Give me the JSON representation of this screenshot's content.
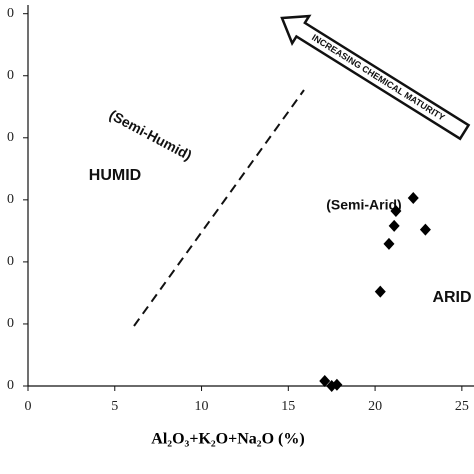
{
  "chart_data": {
    "type": "scatter",
    "x_label": "Al₂O₃+K₂O+Na₂O (%)",
    "annotations": [
      "HUMID",
      "(Semi-Humid)",
      "(Semi-Arid)",
      "ARID",
      "INCREASING CHEMICAL MATURITY"
    ],
    "x": [
      17.1,
      17.5,
      17.8,
      20.3,
      20.8,
      21.1,
      21.2,
      22.2,
      22.9
    ],
    "values": [
      40.8,
      40.0,
      40.2,
      55.2,
      62.9,
      65.8,
      68.2,
      70.3,
      65.2
    ],
    "color": "#000000",
    "xlim": [
      0,
      25.7
    ],
    "xticks": [
      0,
      5,
      10,
      15,
      20,
      25
    ],
    "ylim": [
      40,
      101.4
    ],
    "yticks": [
      {
        "value": 40,
        "label": "0"
      },
      {
        "value": 50,
        "label": "0"
      },
      {
        "value": 60,
        "label": "0"
      },
      {
        "value": 70,
        "label": "0"
      },
      {
        "value": 80,
        "label": "0"
      },
      {
        "value": 90,
        "label": "0"
      },
      {
        "value": 100,
        "label": "0"
      }
    ],
    "grid": false
  }
}
